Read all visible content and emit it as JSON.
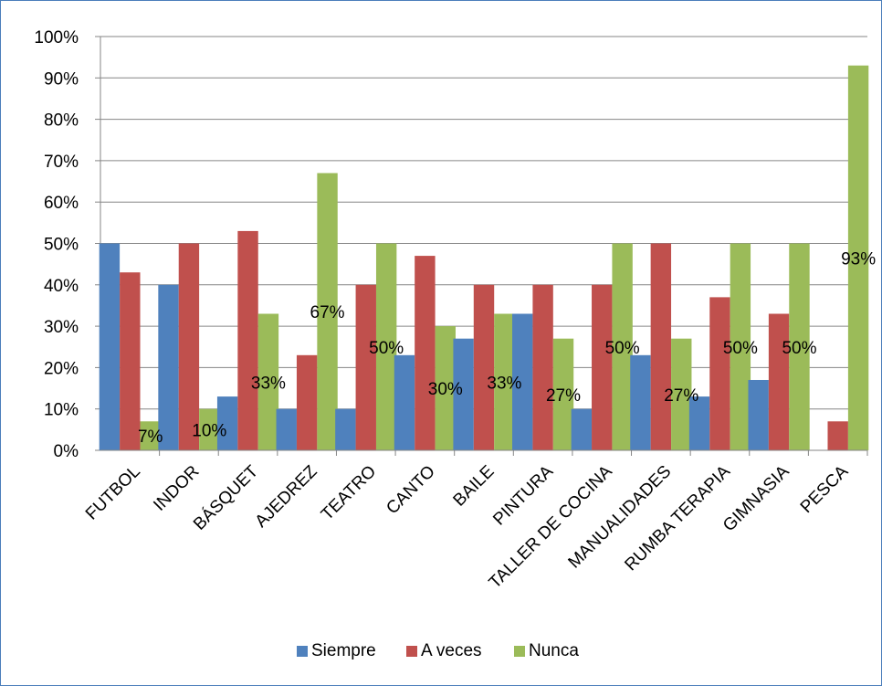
{
  "chart_data": {
    "type": "bar",
    "categories": [
      "FUTBOL",
      "INDOR",
      "BÁSQUET",
      "AJEDREZ",
      "TEATRO",
      "CANTO",
      "BAILE",
      "PINTURA",
      "TALLER DE COCINA",
      "MANUALIDADES",
      "RUMBA TERAPIA",
      "GIMNASIA",
      "PESCA"
    ],
    "series": [
      {
        "name": "Siempre",
        "color": "#4f81bd",
        "values": [
          0.5,
          0.4,
          0.13,
          0.1,
          0.1,
          0.23,
          0.27,
          0.33,
          0.1,
          0.23,
          0.13,
          0.17,
          0.0
        ]
      },
      {
        "name": "A veces",
        "color": "#c0504d",
        "values": [
          0.43,
          0.5,
          0.53,
          0.23,
          0.4,
          0.47,
          0.4,
          0.4,
          0.4,
          0.5,
          0.37,
          0.33,
          0.07
        ]
      },
      {
        "name": "Nunca",
        "color": "#9bbb59",
        "values": [
          0.07,
          0.1,
          0.33,
          0.67,
          0.5,
          0.3,
          0.33,
          0.27,
          0.5,
          0.27,
          0.5,
          0.5,
          0.93
        ]
      }
    ],
    "data_labels": {
      "series": "Nunca",
      "labels": [
        "7%",
        "10%",
        "33%",
        "67%",
        "50%",
        "30%",
        "33%",
        "27%",
        "50%",
        "27%",
        "50%",
        "50%",
        "93%"
      ]
    },
    "y_ticks": [
      "0%",
      "10%",
      "20%",
      "30%",
      "40%",
      "50%",
      "60%",
      "70%",
      "80%",
      "90%",
      "100%"
    ],
    "ylim": [
      0,
      1
    ],
    "grid": true,
    "legend_position": "bottom",
    "title": "",
    "xlabel": "",
    "ylabel": ""
  }
}
